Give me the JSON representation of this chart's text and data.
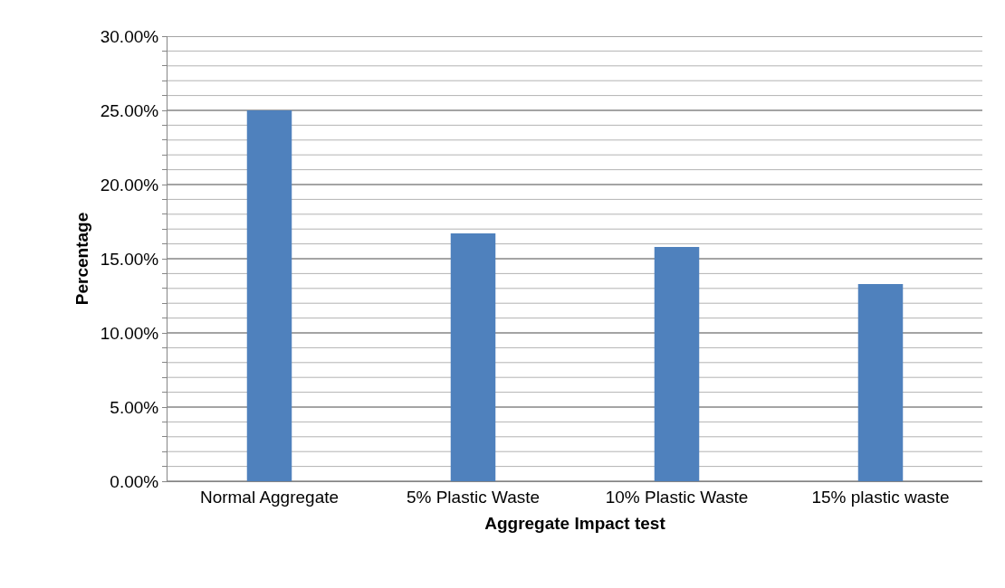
{
  "chart_data": {
    "type": "bar",
    "xlabel": "Aggregate Impact test",
    "ylabel": "Percentage",
    "categories": [
      "Normal Aggregate",
      "5% Plastic Waste",
      "10% Plastic Waste",
      "15% plastic waste"
    ],
    "values": [
      25.0,
      16.7,
      15.8,
      13.3
    ],
    "color": "#4f81bd",
    "ylim": [
      0,
      30
    ],
    "yticks": [
      {
        "value": 0,
        "label": "0.00%"
      },
      {
        "value": 1,
        "label": null
      },
      {
        "value": 2,
        "label": null
      },
      {
        "value": 3,
        "label": null
      },
      {
        "value": 4,
        "label": null
      },
      {
        "value": 5,
        "label": "5.00%"
      },
      {
        "value": 6,
        "label": null
      },
      {
        "value": 7,
        "label": null
      },
      {
        "value": 8,
        "label": null
      },
      {
        "value": 9,
        "label": null
      },
      {
        "value": 10,
        "label": "10.00%"
      },
      {
        "value": 11,
        "label": null
      },
      {
        "value": 12,
        "label": null
      },
      {
        "value": 13,
        "label": null
      },
      {
        "value": 14,
        "label": null
      },
      {
        "value": 15,
        "label": "15.00%"
      },
      {
        "value": 16,
        "label": null
      },
      {
        "value": 17,
        "label": null
      },
      {
        "value": 18,
        "label": null
      },
      {
        "value": 19,
        "label": null
      },
      {
        "value": 20,
        "label": "20.00%"
      },
      {
        "value": 21,
        "label": null
      },
      {
        "value": 22,
        "label": null
      },
      {
        "value": 23,
        "label": null
      },
      {
        "value": 24,
        "label": null
      },
      {
        "value": 25,
        "label": "25.00%"
      },
      {
        "value": 26,
        "label": null
      },
      {
        "value": 27,
        "label": null
      },
      {
        "value": 28,
        "label": null
      },
      {
        "value": 29,
        "label": null
      },
      {
        "value": 30,
        "label": "30.00%"
      }
    ],
    "grid": "y"
  }
}
